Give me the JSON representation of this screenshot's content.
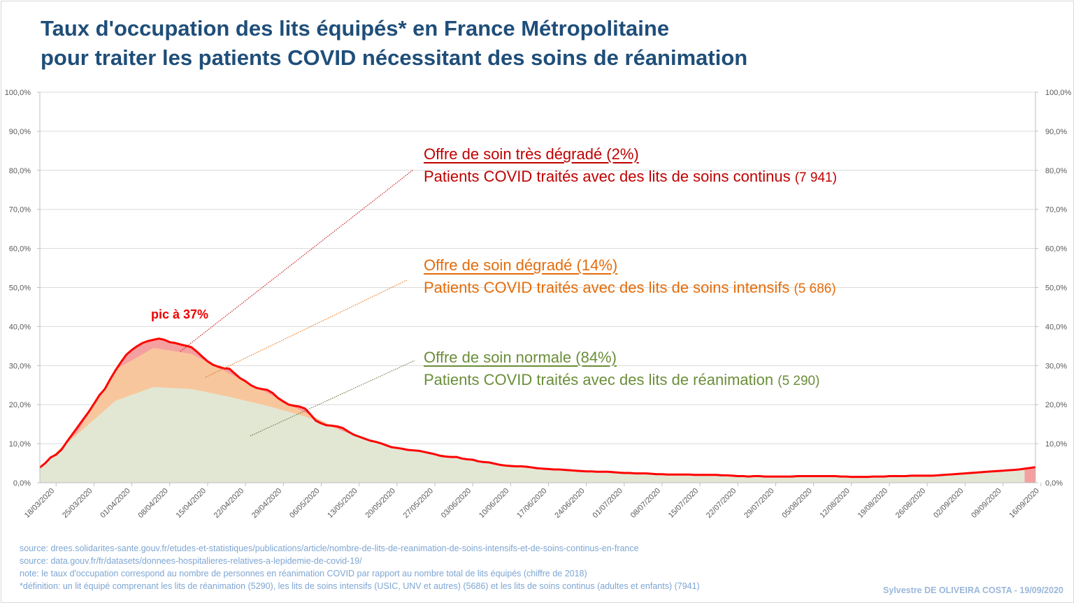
{
  "title": {
    "line1": "Taux d'occupation des lits équipés* en France Métropolitaine",
    "line2": "pour traiter les patients  COVID nécessitant des soins de réanimation"
  },
  "annotations": {
    "tres_degrade": {
      "head": "Offre de soin très dégradé (2%)",
      "sub": "Patients COVID traités avec des lits de soins continus",
      "count": "(7 941)",
      "color": "#c00000"
    },
    "degrade": {
      "head": "Offre de soin dégradé (14%)",
      "sub": "Patients COVID traités avec des lits de soins intensifs",
      "count": "(5 686)",
      "color": "#e46c0a"
    },
    "normale": {
      "head": "Offre de soin normale (84%)",
      "sub": "Patients COVID traités avec des lits de réanimation",
      "count": "(5 290)",
      "color": "#6b8e3a"
    },
    "peak": "pic à 37%"
  },
  "footer": {
    "line1": "source:  drees.solidarites-sante.gouv.fr/etudes-et-statistiques/publications/article/nombre-de-lits-de-reanimation-de-soins-intensifs-et-de-soins-continus-en-france",
    "line2": "source: data.gouv.fr/fr/datasets/donnees-hospitalieres-relatives-a-lepidemie-de-covid-19/",
    "line3": "note: le taux d'occupation correspond au nombre de personnes en réanimation COVID par rapport au nombre total de lits équipés (chiffre de 2018)",
    "line4": "*définition: un lit équipé comprenant les lits  de réanimation (5290),  les lits de soins intensifs (USIC, UNV et autres)  (5686) et  les lits de soins continus (adultes et enfants) (7941)",
    "author": "Sylvestre DE OLIVEIRA COSTA - 19/09/2020"
  },
  "chart_data": {
    "type": "area",
    "start_date": "2020-03-18",
    "ylim": [
      0,
      100
    ],
    "yticks": [
      "0,0%",
      "10,0%",
      "20,0%",
      "30,0%",
      "40,0%",
      "50,0%",
      "60,0%",
      "70,0%",
      "80,0%",
      "90,0%",
      "100,0%"
    ],
    "xticks": [
      "18/03/2020",
      "25/03/2020",
      "01/04/2020",
      "08/04/2020",
      "15/04/2020",
      "22/04/2020",
      "29/04/2020",
      "06/05/2020",
      "13/05/2020",
      "20/05/2020",
      "27/05/2020",
      "03/06/2020",
      "10/06/2020",
      "17/06/2020",
      "24/06/2020",
      "01/07/2020",
      "08/07/2020",
      "15/07/2020",
      "22/07/2020",
      "29/07/2020",
      "05/08/2020",
      "12/08/2020",
      "19/08/2020",
      "26/08/2020",
      "02/09/2020",
      "09/09/2020",
      "16/09/2020"
    ],
    "grid": true,
    "series": [
      {
        "name": "Patients COVID traités avec des lits de réanimation",
        "color": "#e2e7d4",
        "points": [
          [
            "18/03/2020",
            3.9
          ],
          [
            "25/03/2020",
            12.5
          ],
          [
            "01/04/2020",
            21.0
          ],
          [
            "08/04/2020",
            24.5
          ],
          [
            "15/04/2020",
            24.0
          ],
          [
            "22/04/2020",
            22.0
          ],
          [
            "29/04/2020",
            19.7
          ],
          [
            "06/05/2020",
            17.0
          ],
          [
            "13/05/2020",
            13.2
          ],
          [
            "20/05/2020",
            10.0
          ],
          [
            "27/05/2020",
            8.0
          ],
          [
            "03/06/2020",
            6.6
          ],
          [
            "10/06/2020",
            4.9
          ],
          [
            "17/06/2020",
            3.9
          ],
          [
            "24/06/2020",
            3.2
          ],
          [
            "01/07/2020",
            2.8
          ],
          [
            "08/07/2020",
            2.4
          ],
          [
            "15/07/2020",
            2.1
          ],
          [
            "22/07/2020",
            1.9
          ],
          [
            "29/07/2020",
            1.7
          ],
          [
            "05/08/2020",
            1.7
          ],
          [
            "12/08/2020",
            1.7
          ],
          [
            "19/08/2020",
            1.6
          ],
          [
            "26/08/2020",
            1.8
          ],
          [
            "02/09/2020",
            2.1
          ],
          [
            "09/09/2020",
            2.8
          ],
          [
            "16/09/2020",
            3.6
          ]
        ]
      },
      {
        "name": "Patients COVID traités avec des lits de soins intensifs",
        "color": "#f8c69c",
        "points": [
          [
            "18/03/2020",
            3.9
          ],
          [
            "25/03/2020",
            13.0
          ],
          [
            "01/04/2020",
            29.0
          ],
          [
            "08/04/2020",
            34.5
          ],
          [
            "15/04/2020",
            33.0
          ],
          [
            "22/04/2020",
            28.0
          ],
          [
            "29/04/2020",
            23.0
          ],
          [
            "06/05/2020",
            18.0
          ],
          [
            "13/05/2020",
            13.2
          ],
          [
            "20/05/2020",
            10.0
          ],
          [
            "27/05/2020",
            8.0
          ],
          [
            "03/06/2020",
            6.6
          ],
          [
            "10/06/2020",
            4.9
          ],
          [
            "17/06/2020",
            3.9
          ],
          [
            "24/06/2020",
            3.2
          ],
          [
            "01/07/2020",
            2.8
          ],
          [
            "08/07/2020",
            2.4
          ],
          [
            "15/07/2020",
            2.1
          ],
          [
            "22/07/2020",
            1.9
          ],
          [
            "29/07/2020",
            1.7
          ],
          [
            "05/08/2020",
            1.7
          ],
          [
            "12/08/2020",
            1.7
          ],
          [
            "19/08/2020",
            1.6
          ],
          [
            "26/08/2020",
            1.8
          ],
          [
            "02/09/2020",
            2.1
          ],
          [
            "09/09/2020",
            2.8
          ],
          [
            "16/09/2020",
            3.6
          ]
        ]
      },
      {
        "name": "Patients COVID traités avec des lits de soins continus",
        "color": "#ff0000",
        "fill": "#f4a0a0",
        "points": [
          [
            "18/03/2020",
            3.9
          ],
          [
            "19/03/2020",
            5.0
          ],
          [
            "20/03/2020",
            6.5
          ],
          [
            "21/03/2020",
            7.2
          ],
          [
            "22/03/2020",
            8.5
          ],
          [
            "23/03/2020",
            10.5
          ],
          [
            "24/03/2020",
            12.4
          ],
          [
            "25/03/2020",
            14.3
          ],
          [
            "26/03/2020",
            16.2
          ],
          [
            "27/03/2020",
            18.1
          ],
          [
            "28/03/2020",
            20.2
          ],
          [
            "29/03/2020",
            22.4
          ],
          [
            "30/03/2020",
            24.0
          ],
          [
            "31/03/2020",
            26.5
          ],
          [
            "01/04/2020",
            28.8
          ],
          [
            "02/04/2020",
            30.9
          ],
          [
            "03/04/2020",
            32.8
          ],
          [
            "04/04/2020",
            34.0
          ],
          [
            "05/04/2020",
            35.0
          ],
          [
            "06/04/2020",
            35.8
          ],
          [
            "07/04/2020",
            36.3
          ],
          [
            "08/04/2020",
            36.6
          ],
          [
            "09/04/2020",
            36.9
          ],
          [
            "10/04/2020",
            36.6
          ],
          [
            "11/04/2020",
            36.0
          ],
          [
            "12/04/2020",
            35.8
          ],
          [
            "13/04/2020",
            35.4
          ],
          [
            "14/04/2020",
            35.1
          ],
          [
            "15/04/2020",
            34.7
          ],
          [
            "16/04/2020",
            33.6
          ],
          [
            "17/04/2020",
            32.3
          ],
          [
            "18/04/2020",
            31.1
          ],
          [
            "19/04/2020",
            30.2
          ],
          [
            "20/04/2020",
            29.7
          ],
          [
            "21/04/2020",
            29.3
          ],
          [
            "22/04/2020",
            29.2
          ],
          [
            "23/04/2020",
            28.0
          ],
          [
            "24/04/2020",
            26.8
          ],
          [
            "25/04/2020",
            26.0
          ],
          [
            "26/04/2020",
            25.0
          ],
          [
            "27/04/2020",
            24.3
          ],
          [
            "28/04/2020",
            24.0
          ],
          [
            "29/04/2020",
            23.8
          ],
          [
            "30/04/2020",
            23.0
          ],
          [
            "01/05/2020",
            21.7
          ],
          [
            "02/05/2020",
            20.8
          ],
          [
            "03/05/2020",
            20.0
          ],
          [
            "04/05/2020",
            19.7
          ],
          [
            "05/05/2020",
            19.5
          ],
          [
            "06/05/2020",
            19.0
          ],
          [
            "07/05/2020",
            17.5
          ],
          [
            "08/05/2020",
            15.9
          ],
          [
            "09/05/2020",
            15.2
          ],
          [
            "10/05/2020",
            14.7
          ],
          [
            "11/05/2020",
            14.6
          ],
          [
            "12/05/2020",
            14.4
          ],
          [
            "13/05/2020",
            14.0
          ],
          [
            "14/05/2020",
            13.1
          ],
          [
            "15/05/2020",
            12.3
          ],
          [
            "16/05/2020",
            11.8
          ],
          [
            "17/05/2020",
            11.3
          ],
          [
            "18/05/2020",
            10.8
          ],
          [
            "19/05/2020",
            10.5
          ],
          [
            "20/05/2020",
            10.1
          ],
          [
            "21/05/2020",
            9.6
          ],
          [
            "22/05/2020",
            9.1
          ],
          [
            "23/05/2020",
            8.9
          ],
          [
            "24/05/2020",
            8.7
          ],
          [
            "25/05/2020",
            8.4
          ],
          [
            "26/05/2020",
            8.3
          ],
          [
            "27/05/2020",
            8.2
          ],
          [
            "28/05/2020",
            7.9
          ],
          [
            "29/05/2020",
            7.6
          ],
          [
            "30/05/2020",
            7.3
          ],
          [
            "31/05/2020",
            6.9
          ],
          [
            "01/06/2020",
            6.7
          ],
          [
            "02/06/2020",
            6.6
          ],
          [
            "03/06/2020",
            6.6
          ],
          [
            "04/06/2020",
            6.2
          ],
          [
            "05/06/2020",
            6.0
          ],
          [
            "06/06/2020",
            5.9
          ],
          [
            "07/06/2020",
            5.5
          ],
          [
            "08/06/2020",
            5.3
          ],
          [
            "09/06/2020",
            5.2
          ],
          [
            "10/06/2020",
            4.9
          ],
          [
            "11/06/2020",
            4.6
          ],
          [
            "12/06/2020",
            4.4
          ],
          [
            "13/06/2020",
            4.3
          ],
          [
            "14/06/2020",
            4.2
          ],
          [
            "15/06/2020",
            4.2
          ],
          [
            "16/06/2020",
            4.1
          ],
          [
            "17/06/2020",
            3.9
          ],
          [
            "18/06/2020",
            3.7
          ],
          [
            "19/06/2020",
            3.6
          ],
          [
            "20/06/2020",
            3.5
          ],
          [
            "21/06/2020",
            3.4
          ],
          [
            "22/06/2020",
            3.4
          ],
          [
            "23/06/2020",
            3.3
          ],
          [
            "24/06/2020",
            3.2
          ],
          [
            "25/06/2020",
            3.1
          ],
          [
            "26/06/2020",
            3.0
          ],
          [
            "27/06/2020",
            2.9
          ],
          [
            "28/06/2020",
            2.9
          ],
          [
            "29/06/2020",
            2.8
          ],
          [
            "30/06/2020",
            2.8
          ],
          [
            "01/07/2020",
            2.8
          ],
          [
            "02/07/2020",
            2.7
          ],
          [
            "03/07/2020",
            2.6
          ],
          [
            "04/07/2020",
            2.5
          ],
          [
            "05/07/2020",
            2.5
          ],
          [
            "06/07/2020",
            2.4
          ],
          [
            "07/07/2020",
            2.4
          ],
          [
            "08/07/2020",
            2.4
          ],
          [
            "09/07/2020",
            2.3
          ],
          [
            "10/07/2020",
            2.2
          ],
          [
            "11/07/2020",
            2.2
          ],
          [
            "12/07/2020",
            2.1
          ],
          [
            "13/07/2020",
            2.1
          ],
          [
            "14/07/2020",
            2.1
          ],
          [
            "15/07/2020",
            2.1
          ],
          [
            "16/07/2020",
            2.1
          ],
          [
            "17/07/2020",
            2.0
          ],
          [
            "18/07/2020",
            2.0
          ],
          [
            "19/07/2020",
            2.0
          ],
          [
            "20/07/2020",
            2.0
          ],
          [
            "21/07/2020",
            2.0
          ],
          [
            "22/07/2020",
            1.9
          ],
          [
            "23/07/2020",
            1.9
          ],
          [
            "24/07/2020",
            1.8
          ],
          [
            "25/07/2020",
            1.7
          ],
          [
            "26/07/2020",
            1.7
          ],
          [
            "27/07/2020",
            1.6
          ],
          [
            "28/07/2020",
            1.7
          ],
          [
            "29/07/2020",
            1.7
          ],
          [
            "30/07/2020",
            1.6
          ],
          [
            "31/07/2020",
            1.6
          ],
          [
            "01/08/2020",
            1.6
          ],
          [
            "02/08/2020",
            1.6
          ],
          [
            "03/08/2020",
            1.6
          ],
          [
            "04/08/2020",
            1.6
          ],
          [
            "05/08/2020",
            1.7
          ],
          [
            "06/08/2020",
            1.7
          ],
          [
            "07/08/2020",
            1.7
          ],
          [
            "08/08/2020",
            1.7
          ],
          [
            "09/08/2020",
            1.7
          ],
          [
            "10/08/2020",
            1.7
          ],
          [
            "11/08/2020",
            1.7
          ],
          [
            "12/08/2020",
            1.7
          ],
          [
            "13/08/2020",
            1.6
          ],
          [
            "14/08/2020",
            1.6
          ],
          [
            "15/08/2020",
            1.5
          ],
          [
            "16/08/2020",
            1.5
          ],
          [
            "17/08/2020",
            1.5
          ],
          [
            "18/08/2020",
            1.5
          ],
          [
            "19/08/2020",
            1.6
          ],
          [
            "20/08/2020",
            1.6
          ],
          [
            "21/08/2020",
            1.6
          ],
          [
            "22/08/2020",
            1.7
          ],
          [
            "23/08/2020",
            1.7
          ],
          [
            "24/08/2020",
            1.7
          ],
          [
            "25/08/2020",
            1.7
          ],
          [
            "26/08/2020",
            1.8
          ],
          [
            "27/08/2020",
            1.8
          ],
          [
            "28/08/2020",
            1.8
          ],
          [
            "29/08/2020",
            1.8
          ],
          [
            "30/08/2020",
            1.8
          ],
          [
            "31/08/2020",
            1.9
          ],
          [
            "01/09/2020",
            2.0
          ],
          [
            "02/09/2020",
            2.1
          ],
          [
            "03/09/2020",
            2.2
          ],
          [
            "04/09/2020",
            2.3
          ],
          [
            "05/09/2020",
            2.4
          ],
          [
            "06/09/2020",
            2.5
          ],
          [
            "07/09/2020",
            2.6
          ],
          [
            "08/09/2020",
            2.7
          ],
          [
            "09/09/2020",
            2.8
          ],
          [
            "10/09/2020",
            2.9
          ],
          [
            "11/09/2020",
            3.0
          ],
          [
            "12/09/2020",
            3.1
          ],
          [
            "13/09/2020",
            3.2
          ],
          [
            "14/09/2020",
            3.3
          ],
          [
            "15/09/2020",
            3.4
          ],
          [
            "16/09/2020",
            3.6
          ],
          [
            "17/09/2020",
            3.8
          ],
          [
            "18/09/2020",
            4.0
          ]
        ]
      }
    ]
  }
}
